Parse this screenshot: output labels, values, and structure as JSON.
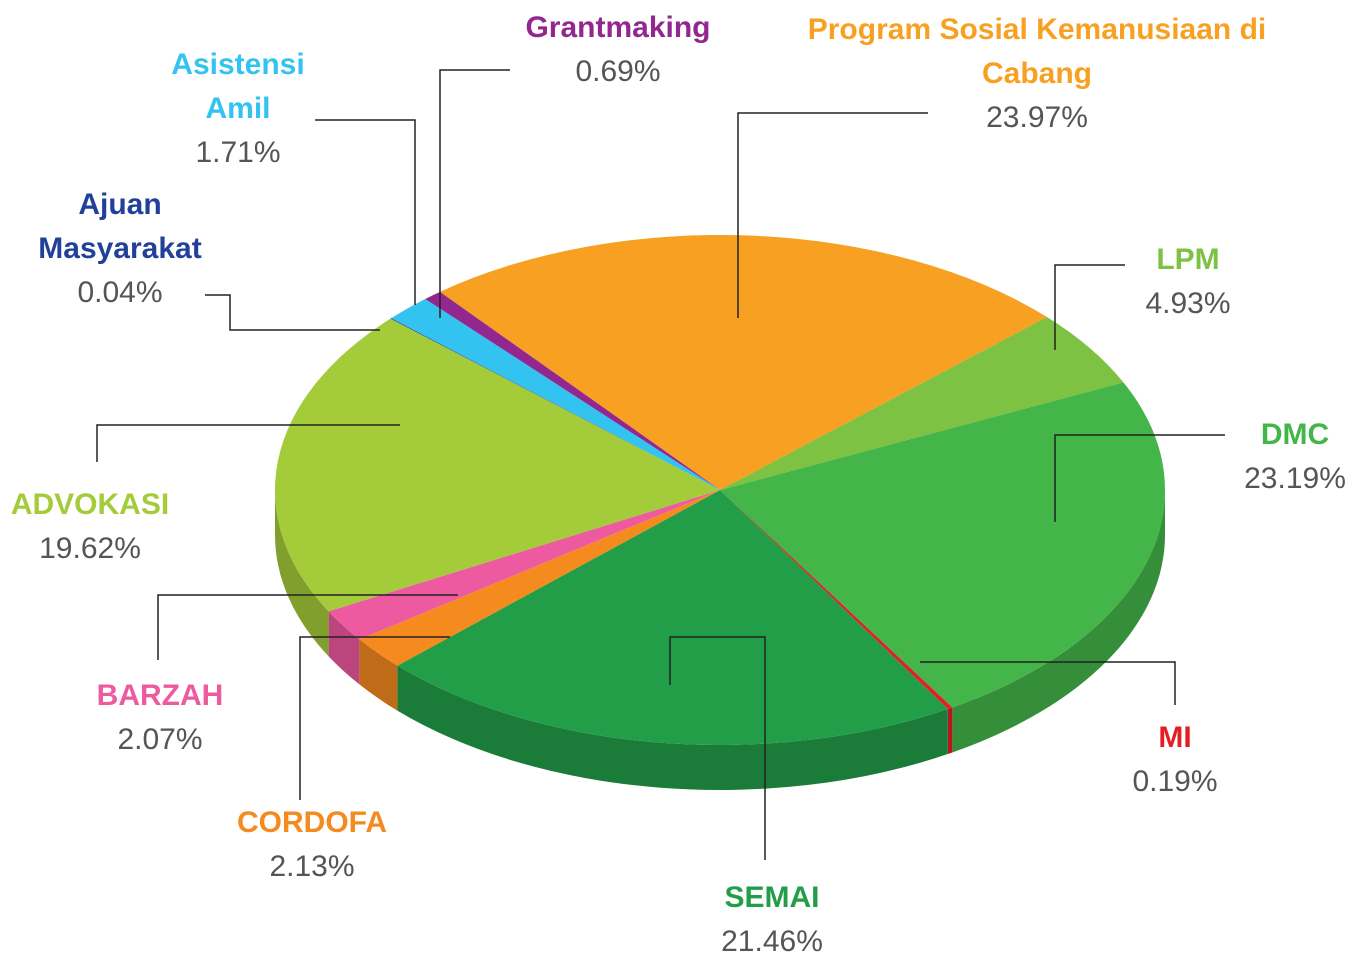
{
  "chart_data": {
    "type": "pie",
    "categories": [
      "Program Sosial Kemanusiaan di Cabang",
      "LPM",
      "DMC",
      "MI",
      "SEMAI",
      "CORDOFA",
      "BARZAH",
      "ADVOKASI",
      "Ajuan Masyarakat",
      "Asistensi Amil",
      "Grantmaking"
    ],
    "values": [
      23.97,
      4.93,
      23.19,
      0.19,
      21.46,
      2.13,
      2.07,
      19.62,
      0.04,
      1.71,
      0.69
    ],
    "value_labels": [
      "23.97%",
      "4.93%",
      "23.19%",
      "0.19%",
      "21.46%",
      "2.13%",
      "2.07%",
      "19.62%",
      "0.04%",
      "1.71%",
      "0.69%"
    ],
    "colors": [
      "#f7a021",
      "#7dc242",
      "#44b649",
      "#e31e24",
      "#239e48",
      "#f58a1f",
      "#ee5aa0",
      "#a4cc3a",
      "#21409a",
      "#33c3f0",
      "#92278f"
    ]
  }
}
